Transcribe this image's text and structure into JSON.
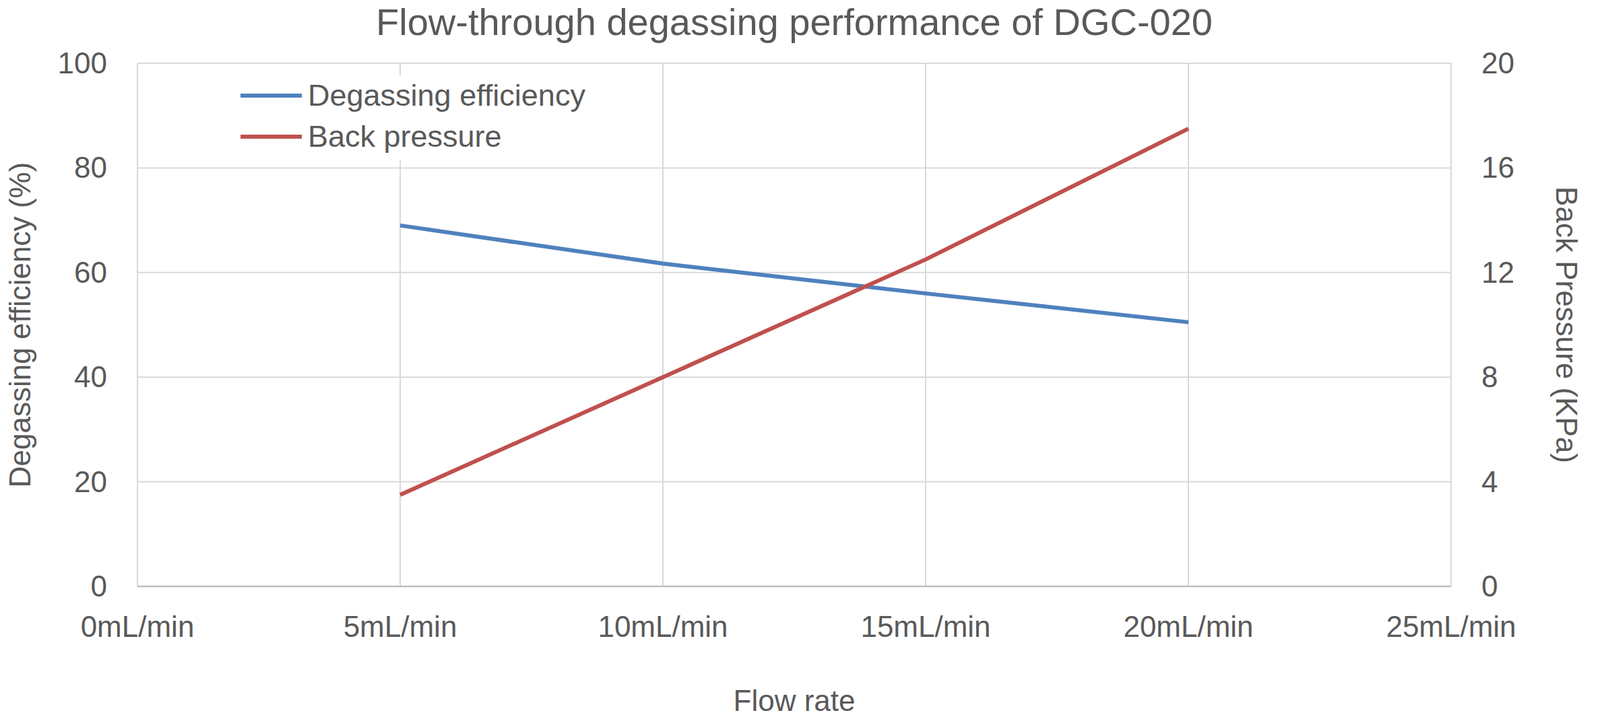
{
  "chart_data": {
    "type": "line",
    "title": "Flow-through degassing performance of DGC-020",
    "x_label": "Flow rate",
    "y_label": "Degassing efficiency (%)",
    "y2_label": "Back Pressure (KPa)",
    "x": [
      5,
      10,
      15,
      20
    ],
    "xlim": [
      0,
      25
    ],
    "xticks": [
      {
        "value": 0,
        "label": "0mL/min"
      },
      {
        "value": 5,
        "label": "5mL/min"
      },
      {
        "value": 10,
        "label": "10mL/min"
      },
      {
        "value": 15,
        "label": "15mL/min"
      },
      {
        "value": 20,
        "label": "20mL/min"
      },
      {
        "value": 25,
        "label": "25mL/min"
      }
    ],
    "ylim": [
      0,
      100
    ],
    "yticks": [
      0,
      20,
      40,
      60,
      80,
      100
    ],
    "y2lim": [
      0,
      20
    ],
    "y2ticks": [
      0,
      4,
      8,
      12,
      16,
      20
    ],
    "grid": true,
    "legend": "upper left",
    "series": [
      {
        "name": "Degassing efficiency",
        "color": "#4f81bd",
        "values": [
          69,
          61.7,
          56,
          50.5
        ]
      },
      {
        "name": "Back pressure",
        "color": "#c0504d",
        "values": [
          3.5,
          8.0,
          12.5,
          17.5
        ],
        "axis": "y2"
      }
    ]
  }
}
